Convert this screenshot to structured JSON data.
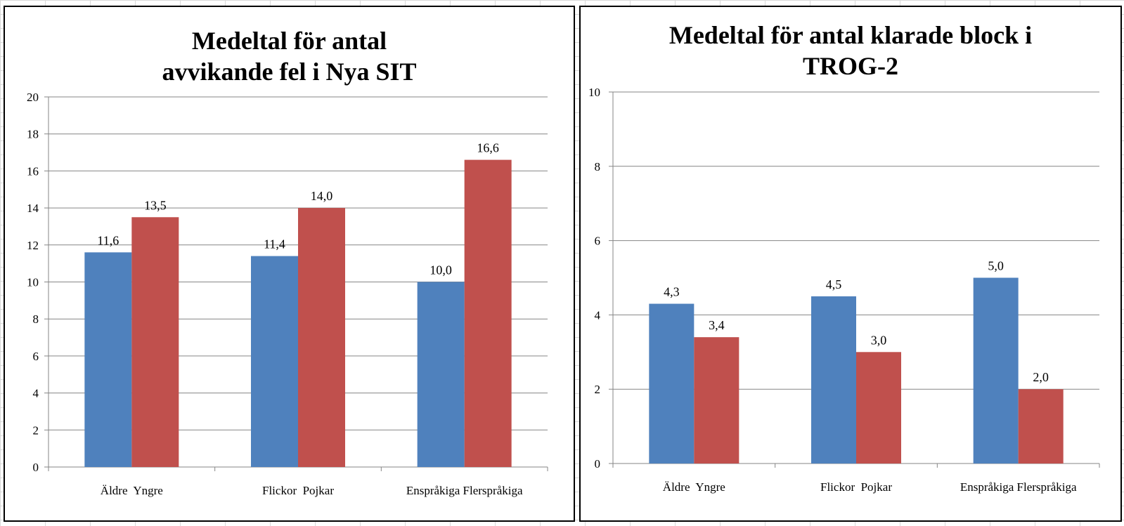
{
  "chart_data": [
    {
      "type": "bar",
      "title_lines": [
        "Medeltal för antal",
        "avvikande  fel i Nya SIT"
      ],
      "categories": [
        "Äldre  Yngre",
        "Flickor  Pojkar",
        "Enspråkiga Flerspråkiga"
      ],
      "series": [
        {
          "name": "Äldre / Flickor / Enspråkiga",
          "color": "#4f81bd",
          "values": [
            11.6,
            11.4,
            10.0
          ]
        },
        {
          "name": "Yngre / Pojkar / Flerspråkiga",
          "color": "#c0504d",
          "values": [
            13.5,
            14.0,
            16.6
          ]
        }
      ],
      "data_labels": [
        [
          "11,6",
          "11,4",
          "10,0"
        ],
        [
          "13,5",
          "14,0",
          "16,6"
        ]
      ],
      "ylim": [
        0,
        20
      ],
      "yticks": [
        0,
        2,
        4,
        6,
        8,
        10,
        12,
        14,
        16,
        18,
        20
      ],
      "grid": true,
      "xlabel": "",
      "ylabel": ""
    },
    {
      "type": "bar",
      "title_lines": [
        "Medeltal för antal klarade block i",
        "TROG-2"
      ],
      "categories": [
        "Äldre  Yngre",
        "Flickor  Pojkar",
        "Enspråkiga Flerspråkiga"
      ],
      "series": [
        {
          "name": "Äldre / Flickor / Enspråkiga",
          "color": "#4f81bd",
          "values": [
            4.3,
            4.5,
            5.0
          ]
        },
        {
          "name": "Yngre / Pojkar / Flerspråkiga",
          "color": "#c0504d",
          "values": [
            3.4,
            3.0,
            2.0
          ]
        }
      ],
      "data_labels": [
        [
          "4,3",
          "4,5",
          "5,0"
        ],
        [
          "3,4",
          "3,0",
          "2,0"
        ]
      ],
      "ylim": [
        0,
        10
      ],
      "yticks": [
        0,
        2,
        4,
        6,
        8,
        10
      ],
      "grid": true,
      "xlabel": "",
      "ylabel": ""
    }
  ]
}
